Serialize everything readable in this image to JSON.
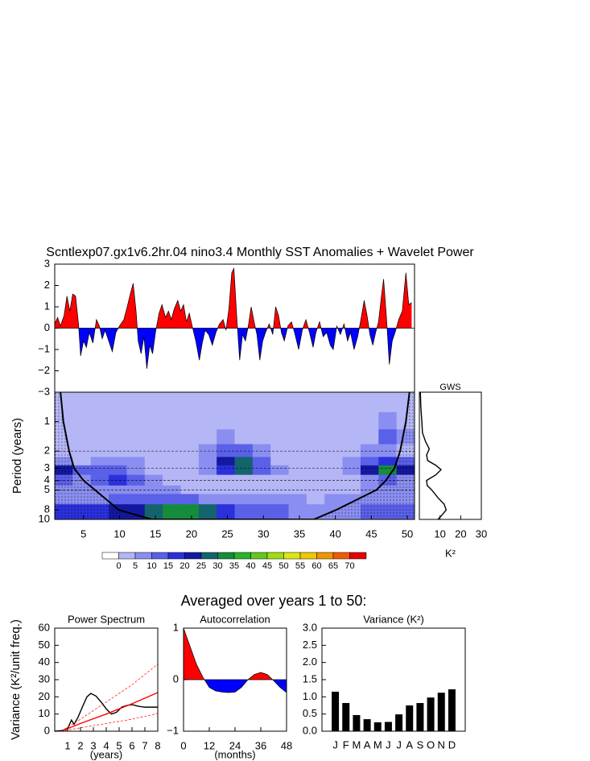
{
  "title": "Scntlexp07.gx1v6.2hr.04 nino3.4 Monthly SST Anomalies + Wavelet Power",
  "section_title": "Averaged over years 1 to 50:",
  "chart_data": [
    {
      "type": "area",
      "x": [
        1.0,
        1.4,
        1.8,
        2.3,
        2.7,
        3.1,
        3.5,
        3.9,
        4.3,
        4.6,
        5.0,
        5.4,
        5.8,
        6.3,
        6.8,
        7.2,
        7.6,
        8.0,
        8.5,
        9.0,
        9.5,
        10.0,
        10.6,
        11.0,
        11.5,
        11.9,
        12.3,
        12.6,
        13.0,
        13.4,
        13.8,
        14.2,
        14.6,
        15.0,
        15.5,
        15.9,
        16.4,
        16.8,
        17.2,
        17.6,
        18.1,
        18.5,
        18.9,
        19.3,
        19.7,
        20.1,
        20.6,
        21.1,
        21.5,
        21.9,
        22.4,
        22.9,
        23.4,
        23.9,
        24.4,
        24.8,
        25.2,
        25.6,
        25.9,
        26.3,
        26.7,
        27.1,
        27.5,
        27.9,
        28.3,
        28.7,
        29.1,
        29.5,
        29.9,
        30.3,
        30.8,
        31.3,
        31.7,
        32.1,
        32.5,
        32.9,
        33.4,
        33.9,
        34.4,
        34.9,
        35.4,
        35.9,
        36.4,
        36.9,
        37.3,
        37.8,
        38.3,
        38.8,
        39.3,
        39.7,
        40.2,
        40.7,
        41.2,
        41.7,
        42.1,
        42.6,
        43.1,
        43.6,
        44.0,
        44.4,
        44.8,
        45.2,
        45.6,
        46.0,
        46.4,
        46.7,
        47.1,
        47.5,
        47.9,
        48.3,
        48.8,
        49.3,
        49.8,
        50.2,
        50.6
      ],
      "values": [
        0.2,
        0.5,
        0.1,
        0.6,
        1.5,
        0.8,
        1.6,
        1.5,
        0.2,
        -1.3,
        -0.6,
        -0.9,
        -0.2,
        -0.7,
        0.4,
        0.1,
        -0.5,
        -0.1,
        -0.6,
        -1.1,
        -0.2,
        0.1,
        0.4,
        0.9,
        1.6,
        2.1,
        0.8,
        -0.6,
        -1.2,
        -0.4,
        -1.9,
        -0.8,
        -1.2,
        -0.2,
        0.7,
        1.1,
        0.5,
        0.8,
        0.4,
        0.9,
        1.3,
        0.8,
        1.1,
        0.3,
        0.7,
        0.1,
        -0.6,
        -1.5,
        -0.7,
        -0.1,
        -0.3,
        -0.8,
        -0.2,
        0.2,
        0.4,
        -0.1,
        0.9,
        2.6,
        2.8,
        0.5,
        -1.5,
        -0.3,
        -0.6,
        0.1,
        1.0,
        0.3,
        -0.3,
        -1.5,
        -0.6,
        -0.2,
        0.2,
        -0.3,
        1.0,
        0.6,
        -0.2,
        -0.6,
        0.1,
        0.3,
        -0.3,
        -1.0,
        -0.1,
        0.4,
        -0.2,
        -0.9,
        -0.2,
        0.3,
        -0.4,
        -0.2,
        -0.8,
        -1.0,
        0.1,
        -0.3,
        0.2,
        -0.6,
        -0.2,
        -1.0,
        -0.4,
        0.5,
        1.3,
        0.6,
        -0.3,
        -0.8,
        -0.2,
        0.3,
        1.5,
        2.3,
        0.5,
        -1.7,
        -0.6,
        -0.2,
        0.4,
        0.8,
        2.6,
        1.1,
        1.2
      ],
      "pos_color": "#ff0000",
      "neg_color": "#0000ff",
      "xlim": [
        1,
        51
      ],
      "ylim": [
        -3,
        3
      ],
      "yticks": [
        {
          "value": -3,
          "label": "−3"
        },
        {
          "value": -2,
          "label": "−2"
        },
        {
          "value": -1,
          "label": "−1"
        },
        0,
        1,
        2,
        3
      ]
    },
    {
      "type": "heatmap",
      "ylabel": "Period (years)",
      "xbins": [
        1,
        3.5,
        6,
        8.5,
        11,
        13.5,
        16,
        18.5,
        21,
        23.5,
        26,
        28.5,
        31,
        33.5,
        36,
        38.5,
        41,
        43.5,
        46,
        48.5,
        51
      ],
      "ybins": [
        0.5,
        0.8,
        1.2,
        1.7,
        2.3,
        2.8,
        3.5,
        4.5,
        5.5,
        7,
        10
      ],
      "z": [
        [
          2,
          2,
          2,
          2,
          2,
          2,
          2,
          2,
          2,
          2,
          2,
          2,
          2,
          2,
          2,
          2,
          2,
          2,
          2,
          2
        ],
        [
          3,
          3,
          3,
          3,
          3,
          3,
          3,
          3,
          3,
          3,
          3,
          3,
          3,
          3,
          3,
          3,
          3,
          3,
          6,
          3
        ],
        [
          3,
          3,
          3,
          3,
          3,
          3,
          3,
          3,
          3,
          6,
          4,
          3,
          3,
          3,
          3,
          3,
          3,
          4,
          12,
          5
        ],
        [
          4,
          3,
          3,
          3,
          3,
          3,
          3,
          3,
          7,
          12,
          14,
          7,
          3,
          3,
          3,
          3,
          3,
          6,
          8,
          4
        ],
        [
          8,
          3,
          7,
          8,
          5,
          3,
          3,
          3,
          8,
          22,
          28,
          10,
          4,
          3,
          3,
          3,
          6,
          14,
          18,
          12
        ],
        [
          22,
          12,
          10,
          12,
          8,
          4,
          3,
          3,
          6,
          18,
          26,
          12,
          6,
          3,
          3,
          3,
          9,
          24,
          30,
          20
        ],
        [
          12,
          8,
          12,
          17,
          12,
          6,
          4,
          3,
          3,
          3,
          3,
          3,
          3,
          3,
          3,
          3,
          3,
          8,
          10,
          8
        ],
        [
          7,
          7,
          8,
          8,
          7,
          6,
          5,
          3,
          3,
          3,
          3,
          3,
          3,
          3,
          3,
          3,
          4,
          5,
          5,
          5
        ],
        [
          9,
          8,
          9,
          10,
          10,
          11,
          11,
          10,
          8,
          6,
          5,
          6,
          6,
          5,
          4,
          5,
          6,
          8,
          9,
          8
        ],
        [
          16,
          17,
          18,
          20,
          24,
          28,
          32,
          32,
          27,
          18,
          12,
          10,
          10,
          9,
          8,
          7,
          9,
          12,
          12,
          10
        ]
      ],
      "levels": [
        0,
        5,
        10,
        15,
        20,
        25,
        30,
        35,
        40,
        45,
        50,
        55,
        60,
        65,
        70
      ],
      "colors": [
        "#ffffff",
        "#b4b6f6",
        "#8a8ef0",
        "#5a60e8",
        "#2a30dc",
        "#1418a0",
        "#14646e",
        "#148c3c",
        "#28b428",
        "#64c81e",
        "#a0dc14",
        "#dce614",
        "#f0c800",
        "#f09600",
        "#f05a00",
        "#e60000"
      ],
      "xlim": [
        1,
        51
      ],
      "ylim": [
        0.5,
        10
      ],
      "ylog": true,
      "yreverse": true,
      "xticks": [
        5,
        10,
        15,
        20,
        25,
        30,
        35,
        40,
        45,
        50
      ],
      "yticks": [
        1,
        2,
        3,
        4,
        5,
        8,
        10
      ],
      "dashed_periods": [
        2,
        3,
        4,
        5
      ],
      "coi": {
        "x": [
          1.8,
          2.2,
          3.0,
          3.7,
          5.0,
          6.6,
          9.9,
          14.5,
          37.0,
          40.1,
          45.7,
          47.0,
          48.2,
          49.0,
          49.8,
          50.3
        ],
        "y": [
          0.5,
          1,
          2,
          3,
          4,
          5,
          8,
          10,
          10,
          8,
          5,
          4,
          3,
          2,
          1,
          0.5
        ]
      }
    },
    {
      "type": "line",
      "orientation": "horizontal",
      "title": "GWS",
      "xlabel": "K²",
      "y": [
        0.5,
        0.7,
        1,
        1.3,
        1.6,
        1.9,
        2.2,
        2.5,
        2.8,
        3.1,
        3.5,
        4,
        4.5,
        5,
        6,
        7,
        8,
        9,
        10
      ],
      "values": [
        0.5,
        0.7,
        1.2,
        1.5,
        3,
        4.8,
        3.5,
        4,
        8,
        10.5,
        8,
        3.5,
        3.8,
        6,
        9,
        12,
        13,
        11,
        9
      ],
      "color": "#000000",
      "xlim": [
        0,
        30
      ],
      "xticks": [
        10,
        20,
        30
      ],
      "ylim": [
        0.5,
        10
      ],
      "ylog": true,
      "yreverse": true
    },
    {
      "type": "line",
      "title": "Power Spectrum",
      "xlabel": "(years)",
      "ylabel": "Variance (K²/unit freq.)",
      "series": [
        {
          "color": "#000000",
          "dashed": false,
          "x": [
            0,
            0.5,
            1,
            1.3,
            1.5,
            1.8,
            2.2,
            2.5,
            2.8,
            3.2,
            3.6,
            4,
            4.4,
            4.8,
            5.2,
            5.6,
            6,
            6.5,
            7,
            7.5,
            8
          ],
          "values": [
            0,
            0.3,
            1.5,
            6.5,
            4,
            8,
            15,
            20,
            22,
            20.5,
            17,
            13,
            10,
            11,
            14,
            15,
            15.5,
            14.5,
            14,
            14,
            14
          ]
        },
        {
          "color": "#ff0000",
          "dashed": false,
          "x": [
            0.5,
            2,
            4,
            6,
            8
          ],
          "values": [
            0,
            4.5,
            10,
            16,
            22.5
          ]
        },
        {
          "color": "#ff0000",
          "dashed": true,
          "x": [
            0.5,
            2,
            4,
            6,
            8
          ],
          "values": [
            0,
            7,
            17,
            27,
            39
          ]
        },
        {
          "color": "#ff0000",
          "dashed": true,
          "x": [
            0.5,
            2,
            4,
            6,
            8
          ],
          "values": [
            0,
            2,
            4.5,
            7,
            10.3
          ]
        }
      ],
      "xlim": [
        0,
        8
      ],
      "xticks": [
        1,
        2,
        3,
        4,
        5,
        6,
        7,
        8
      ],
      "ylim": [
        0,
        60
      ],
      "yticks": [
        0,
        10,
        20,
        30,
        40,
        50,
        60
      ]
    },
    {
      "type": "area",
      "title": "Autocorrelation",
      "xlabel": "(months)",
      "x": [
        0,
        3,
        6,
        9,
        12,
        15,
        18,
        21,
        24,
        27,
        30,
        33,
        36,
        39,
        42,
        45,
        48
      ],
      "values": [
        1,
        0.65,
        0.3,
        0.05,
        -0.15,
        -0.22,
        -0.24,
        -0.25,
        -0.24,
        -0.15,
        0.0,
        0.1,
        0.14,
        0.1,
        -0.02,
        -0.15,
        -0.25
      ],
      "pos_color": "#ff0000",
      "neg_color": "#0000ff",
      "xlim": [
        0,
        48
      ],
      "xticks": [
        0,
        12,
        24,
        36,
        48
      ],
      "ylim": [
        -1,
        1
      ],
      "yticks": [
        {
          "value": -1,
          "label": "−1"
        },
        0,
        1
      ]
    },
    {
      "type": "bar",
      "title": "Variance (K²)",
      "categories": [
        "J",
        "F",
        "M",
        "A",
        "M",
        "J",
        "J",
        "A",
        "S",
        "O",
        "N",
        "D"
      ],
      "values": [
        1.15,
        0.82,
        0.47,
        0.35,
        0.26,
        0.27,
        0.49,
        0.75,
        0.82,
        0.98,
        1.12,
        1.22
      ],
      "color": "#000000",
      "ylim": [
        0,
        3
      ],
      "yticks": [
        {
          "value": 0,
          "label": "0.0"
        },
        {
          "value": 0.5,
          "label": "0.5"
        },
        {
          "value": 1,
          "label": "1.0"
        },
        {
          "value": 1.5,
          "label": "1.5"
        },
        {
          "value": 2,
          "label": "2.0"
        },
        {
          "value": 2.5,
          "label": "2.5"
        },
        {
          "value": 3,
          "label": "3.0"
        }
      ]
    }
  ]
}
